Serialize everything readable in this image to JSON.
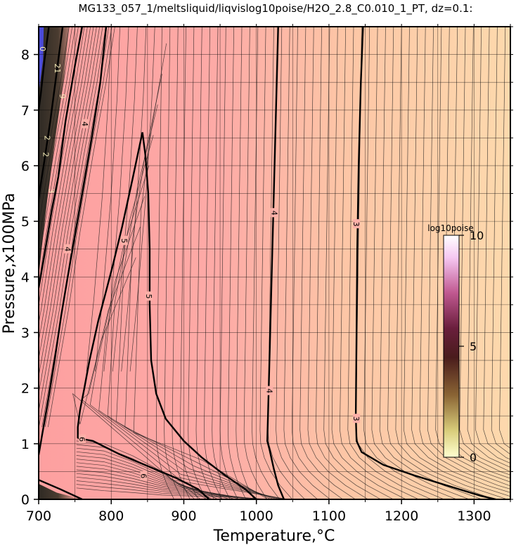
{
  "chart_data": {
    "type": "contour",
    "title": "MG133_057_1/meltsliquid/liqvislog10poise/H2O_2.8_C0.010_1_PT, dz=0.1:",
    "xlabel": "Temperature,°C",
    "ylabel": "Pressure,x100MPa",
    "xlim": [
      700,
      1350
    ],
    "ylim": [
      0,
      8.5
    ],
    "x_ticks": [
      "700",
      "800",
      "900",
      "1000",
      "1100",
      "1200",
      "1300"
    ],
    "y_ticks": [
      "0",
      "1",
      "2",
      "3",
      "4",
      "5",
      "6",
      "7",
      "8"
    ],
    "grid": true,
    "colorbar": {
      "title": "log10poise",
      "range": [
        0,
        10
      ],
      "ticks": [
        "0",
        "5",
        "10"
      ],
      "colors": [
        "#ffffd2",
        "#c8b45a",
        "#6e3c28",
        "#3c0a14",
        "#b44678",
        "#ffd2ff",
        "#ffffff"
      ],
      "position": "right"
    },
    "background_colors": {
      "hot": "#fdd5ad",
      "mid": "#fda5a5",
      "cold": "#3a3530"
    },
    "contour_labels": [
      {
        "value": "3",
        "x": 1138,
        "y": 4.95
      },
      {
        "value": "3",
        "x": 1138,
        "y": 1.45
      },
      {
        "value": "4",
        "x": 1025,
        "y": 5.15
      },
      {
        "value": "4",
        "x": 1018,
        "y": 1.95
      },
      {
        "value": "5",
        "x": 852,
        "y": 3.65
      },
      {
        "value": "5",
        "x": 818,
        "y": 4.65
      },
      {
        "value": "4",
        "x": 740,
        "y": 4.5
      },
      {
        "value": "4",
        "x": 764,
        "y": 6.75
      },
      {
        "value": "6",
        "x": 760,
        "y": 1.08
      },
      {
        "value": "6",
        "x": 845,
        "y": 0.42
      },
      {
        "value": "3",
        "x": 718,
        "y": 5.55
      },
      {
        "value": "2",
        "x": 710,
        "y": 6.2
      },
      {
        "value": "2",
        "x": 712,
        "y": 6.5
      },
      {
        "value": "9",
        "x": 733,
        "y": 7.25
      },
      {
        "value": "21",
        "x": 726,
        "y": 7.75
      },
      {
        "value": "0",
        "x": 706,
        "y": 8.1
      }
    ],
    "bold_contours": [
      {
        "level": "3",
        "points": [
          [
            1147,
            8.5
          ],
          [
            1144,
            7.5
          ],
          [
            1141,
            6.0
          ],
          [
            1139,
            4.5
          ],
          [
            1138,
            3.0
          ],
          [
            1137,
            1.5
          ],
          [
            1138,
            1.05
          ],
          [
            1145,
            0.85
          ],
          [
            1175,
            0.62
          ],
          [
            1220,
            0.42
          ],
          [
            1270,
            0.22
          ],
          [
            1310,
            0.06
          ],
          [
            1330,
            0.0
          ]
        ]
      },
      {
        "level": "4",
        "points": [
          [
            1030,
            8.5
          ],
          [
            1027,
            7.0
          ],
          [
            1024,
            5.5
          ],
          [
            1021,
            4.0
          ],
          [
            1018,
            2.5
          ],
          [
            1016,
            1.5
          ],
          [
            1015,
            1.05
          ],
          [
            1018,
            0.9
          ],
          [
            1024,
            0.55
          ],
          [
            1030,
            0.25
          ],
          [
            1038,
            0.0
          ]
        ]
      },
      {
        "level": "5",
        "points": [
          [
            843,
            6.6
          ],
          [
            847,
            6.2
          ],
          [
            851,
            5.5
          ],
          [
            853,
            4.5
          ],
          [
            853,
            3.5
          ],
          [
            855,
            2.5
          ],
          [
            862,
            1.9
          ],
          [
            875,
            1.45
          ],
          [
            900,
            1.05
          ],
          [
            925,
            0.75
          ],
          [
            955,
            0.45
          ],
          [
            985,
            0.18
          ],
          [
            1000,
            0.0
          ]
        ]
      },
      {
        "level": "5",
        "points": [
          [
            843,
            6.6
          ],
          [
            830,
            5.8
          ],
          [
            815,
            4.9
          ],
          [
            802,
            4.2
          ],
          [
            790,
            3.6
          ],
          [
            782,
            3.2
          ],
          [
            776,
            2.85
          ],
          [
            770,
            2.5
          ],
          [
            763,
            2.0
          ],
          [
            757,
            1.6
          ],
          [
            754,
            1.3
          ],
          [
            754,
            1.1
          ]
        ]
      },
      {
        "level": "6",
        "points": [
          [
            754,
            1.1
          ],
          [
            775,
            1.05
          ],
          [
            810,
            0.82
          ],
          [
            850,
            0.6
          ],
          [
            890,
            0.38
          ],
          [
            920,
            0.18
          ],
          [
            935,
            0.0
          ]
        ]
      },
      {
        "level": "4",
        "points": [
          [
            793,
            8.5
          ],
          [
            785,
            7.5
          ],
          [
            773,
            6.5
          ],
          [
            760,
            5.5
          ],
          [
            748,
            4.6
          ],
          [
            740,
            4.0
          ],
          [
            731,
            3.3
          ],
          [
            722,
            2.5
          ],
          [
            712,
            1.7
          ],
          [
            704,
            1.1
          ],
          [
            700,
            0.8
          ]
        ]
      },
      {
        "level": "3",
        "points": [
          [
            760,
            8.5
          ],
          [
            750,
            7.8
          ],
          [
            737,
            6.8
          ],
          [
            727,
            5.8
          ],
          [
            718,
            5.2
          ],
          [
            708,
            4.4
          ],
          [
            700,
            3.8
          ]
        ]
      },
      {
        "level": "2",
        "points": [
          [
            733,
            8.5
          ],
          [
            724,
            7.6
          ],
          [
            716,
            6.8
          ],
          [
            708,
            6.1
          ],
          [
            702,
            5.6
          ],
          [
            700,
            5.4
          ]
        ]
      },
      {
        "level": "1",
        "points": [
          [
            714,
            8.5
          ],
          [
            708,
            7.9
          ],
          [
            703,
            7.3
          ],
          [
            700,
            7.0
          ]
        ]
      },
      {
        "level": "5",
        "points": [
          [
            700,
            0.35
          ],
          [
            730,
            0.18
          ],
          [
            760,
            0.0
          ]
        ]
      }
    ]
  }
}
